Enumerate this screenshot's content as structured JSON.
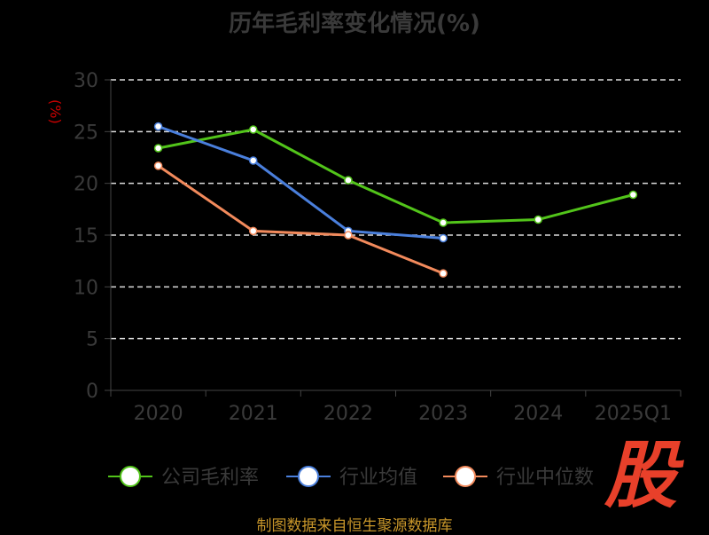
{
  "chart_data": {
    "type": "line",
    "title": "历年毛利率变化情况(%)",
    "ylabel": "(%)",
    "xlabel": "",
    "ylim": [
      0,
      30
    ],
    "yticks": [
      0,
      5,
      10,
      15,
      20,
      25,
      30
    ],
    "categories": [
      "2020",
      "2021",
      "2022",
      "2023",
      "2024",
      "2025Q1"
    ],
    "grid": true,
    "legend": "bottom",
    "series": [
      {
        "name": "公司毛利率",
        "color": "#52c41a",
        "values": [
          23.4,
          25.2,
          20.3,
          16.2,
          16.5,
          18.9
        ]
      },
      {
        "name": "行业均值",
        "color": "#4a7fdc",
        "values": [
          25.5,
          22.2,
          15.4,
          14.7,
          null,
          null
        ]
      },
      {
        "name": "行业中位数",
        "color": "#f28a5c",
        "values": [
          21.7,
          15.4,
          15.0,
          11.3,
          null,
          null
        ]
      }
    ]
  },
  "source": "制图数据来自恒生聚源数据库",
  "logo": "股"
}
